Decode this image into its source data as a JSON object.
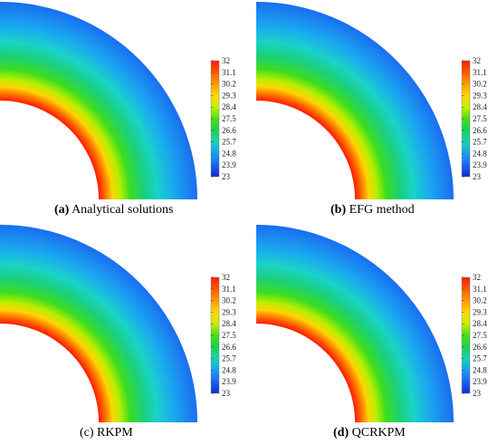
{
  "colorbar": {
    "ticks": [
      "32",
      "31.1",
      "30.2",
      "29.3",
      "28.4",
      "27.5",
      "26.6",
      "25.7",
      "24.8",
      "23.9",
      "23"
    ],
    "colors": [
      "#ff1a00",
      "#ff5a00",
      "#ff9b00",
      "#ffd800",
      "#c8f000",
      "#46de1a",
      "#1ad24e",
      "#1ad2b4",
      "#1aa0f0",
      "#1a64f0",
      "#1428d2"
    ]
  },
  "panels": [
    {
      "letter": "(a)",
      "caption": "Analytical solutions"
    },
    {
      "letter": "(b)",
      "caption": "EFG method"
    },
    {
      "letter": "(c)",
      "caption": "RKPM"
    },
    {
      "letter": "(d)",
      "caption": "QCRKPM"
    }
  ]
}
